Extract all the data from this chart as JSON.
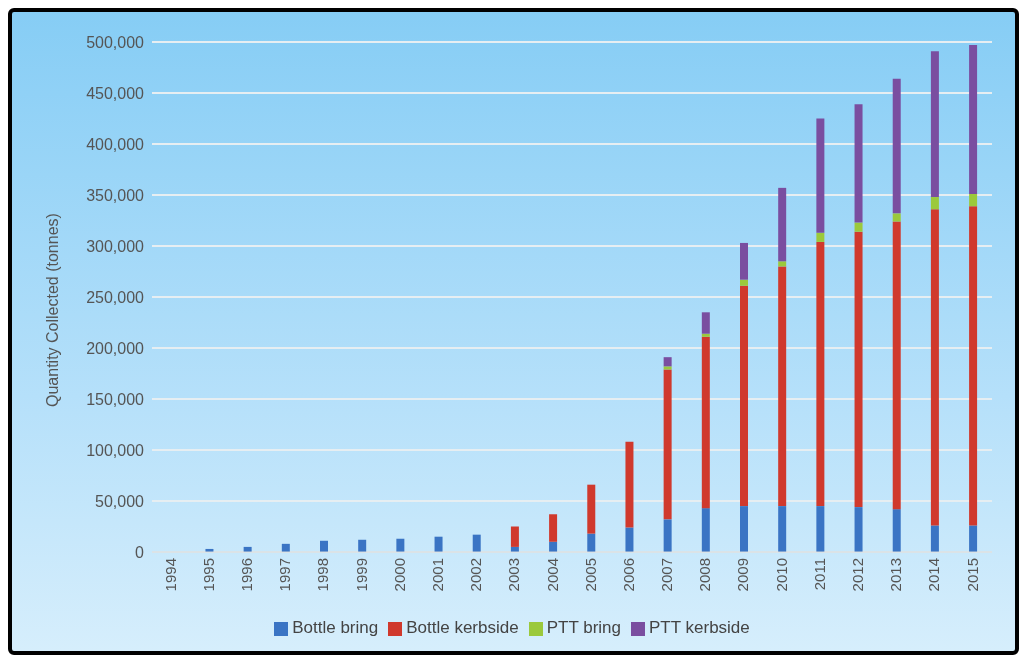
{
  "chart_data": {
    "type": "bar",
    "stacked": true,
    "ylabel": "Quantity Collected (tonnes)",
    "categories": [
      "1994",
      "1995",
      "1996",
      "1997",
      "1998",
      "1999",
      "2000",
      "2001",
      "2002",
      "2003",
      "2004",
      "2005",
      "2006",
      "2007",
      "2008",
      "2009",
      "2010",
      "2011",
      "2012",
      "2013",
      "2014",
      "2015"
    ],
    "series": [
      {
        "name": "Bottle bring",
        "color": "#3a74c4",
        "values": [
          0,
          3000,
          5000,
          8000,
          11000,
          12000,
          13000,
          15000,
          17000,
          5000,
          10000,
          18000,
          24000,
          32000,
          43000,
          45000,
          45000,
          45000,
          44000,
          42000,
          26000,
          26000
        ]
      },
      {
        "name": "Bottle kerbside",
        "color": "#d0392d",
        "values": [
          0,
          0,
          0,
          0,
          0,
          0,
          0,
          0,
          0,
          20000,
          27000,
          48000,
          84000,
          147000,
          168000,
          216000,
          235000,
          259000,
          270000,
          282000,
          310000,
          313000
        ]
      },
      {
        "name": "PTT bring",
        "color": "#9bc93c",
        "values": [
          0,
          0,
          0,
          0,
          0,
          0,
          0,
          0,
          0,
          0,
          0,
          0,
          0,
          3000,
          3000,
          6000,
          5000,
          9000,
          9000,
          8000,
          12000,
          12000
        ]
      },
      {
        "name": "PTT kerbside",
        "color": "#7a4ea0",
        "values": [
          0,
          0,
          0,
          0,
          0,
          0,
          0,
          0,
          0,
          0,
          0,
          0,
          0,
          9000,
          21000,
          36000,
          72000,
          112000,
          116000,
          132000,
          143000,
          146000
        ]
      }
    ],
    "ylim": [
      0,
      500000
    ],
    "yticks": [
      0,
      {
        "value": 50000,
        "label": "50,000"
      },
      {
        "value": 100000,
        "label": "100,000"
      },
      {
        "value": 150000,
        "label": "150,000"
      },
      {
        "value": 200000,
        "label": "200,000"
      },
      {
        "value": 250000,
        "label": "250,000"
      },
      {
        "value": 300000,
        "label": "300,000"
      },
      {
        "value": 350000,
        "label": "350,000"
      },
      {
        "value": 400000,
        "label": "400,000"
      },
      {
        "value": 450000,
        "label": "450,000"
      },
      {
        "value": 500000,
        "label": "500,000"
      }
    ],
    "grid": "y",
    "legend": "bottom"
  }
}
